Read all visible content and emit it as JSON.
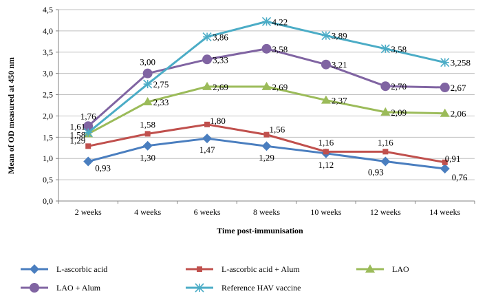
{
  "chart_data": {
    "type": "line",
    "title": "",
    "xlabel": "Time post-immunisation",
    "ylabel": "Mean of OD measured at 450 nm",
    "categories": [
      "2 weeks",
      "4 weeks",
      "6 weeks",
      "8 weeks",
      "10 weeks",
      "12 weeks",
      "14 weeks"
    ],
    "ylim": [
      0,
      4.5
    ],
    "yticks": [
      "0,0",
      "0,5",
      "1,0",
      "1,5",
      "2,0",
      "2,5",
      "3,0",
      "3,5",
      "4,0",
      "4,5"
    ],
    "grid": "horizontal",
    "legend_position": "bottom",
    "series": [
      {
        "name": "L-ascorbic acid",
        "color": "#4a7ebf",
        "marker": "diamond",
        "values": [
          0.93,
          1.3,
          1.47,
          1.29,
          1.12,
          0.93,
          0.76
        ],
        "labels": [
          "0,93",
          "1,30",
          "1,47",
          "1,29",
          "1,12",
          "0,93",
          "0,76"
        ]
      },
      {
        "name": "L-ascorbic acid + Alum",
        "color": "#c0504d",
        "marker": "square",
        "values": [
          1.29,
          1.58,
          1.8,
          1.56,
          1.16,
          1.16,
          0.91
        ],
        "labels": [
          "1,29",
          "1,58",
          "1,80",
          "1,56",
          "1,16",
          "1,16",
          "0,91"
        ]
      },
      {
        "name": "LAO",
        "color": "#9bbb59",
        "marker": "triangle",
        "values": [
          1.58,
          2.33,
          2.69,
          2.69,
          2.37,
          2.09,
          2.06
        ],
        "labels": [
          "1,58",
          "2,33",
          "2,69",
          "2,69",
          "2,37",
          "2,09",
          "2,06"
        ]
      },
      {
        "name": "LAO + Alum",
        "color": "#8064a2",
        "marker": "circle",
        "values": [
          1.76,
          3.0,
          3.33,
          3.58,
          3.21,
          2.7,
          2.67
        ],
        "labels": [
          "1,76",
          "3,00",
          "3,33",
          "3,58",
          "3,21",
          "2,70",
          "2,67"
        ]
      },
      {
        "name": "Reference HAV vaccine",
        "color": "#4bacc6",
        "marker": "star",
        "values": [
          1.61,
          2.75,
          3.86,
          4.22,
          3.89,
          3.58,
          3.258
        ],
        "labels": [
          "1,61",
          "2,75",
          "3,86",
          "4,22",
          "3,89",
          "3,58",
          "3,258"
        ]
      }
    ]
  }
}
